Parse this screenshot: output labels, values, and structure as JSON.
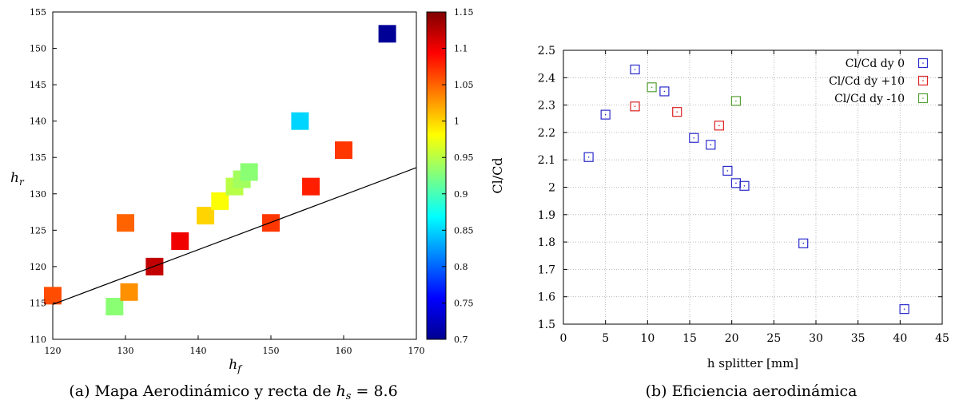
{
  "captions": {
    "left_prefix": "(a) Mapa Aerodinámico y recta de ",
    "left_math_var": "h",
    "left_math_sub": "s",
    "left_math_rest": " = 8.6",
    "right": "(b) Eficiencia aerodinámica"
  },
  "chart_data": [
    {
      "type": "heatmap",
      "title": "",
      "xlabel": "h",
      "xlabel_sub": "f",
      "ylabel": "h",
      "ylabel_sub": "r",
      "xlim": [
        120,
        170
      ],
      "ylim": [
        110,
        155
      ],
      "x_ticks": [
        120,
        130,
        140,
        150,
        160,
        170
      ],
      "y_ticks": [
        110,
        115,
        120,
        125,
        130,
        135,
        140,
        145,
        150,
        155
      ],
      "colorbar": {
        "label": "Cl/Cd",
        "range": [
          0.7,
          1.15
        ],
        "ticks": [
          "0.7",
          "0.75",
          "0.8",
          "0.85",
          "0.9",
          "0.95",
          "1",
          "1.05",
          "1.1",
          "1.15"
        ],
        "colormap": "jet"
      },
      "points": [
        {
          "x": 120,
          "y": 116,
          "value": 1.06
        },
        {
          "x": 128.5,
          "y": 114.5,
          "value": 0.93
        },
        {
          "x": 130,
          "y": 126,
          "value": 1.05
        },
        {
          "x": 130.5,
          "y": 116.5,
          "value": 1.03
        },
        {
          "x": 134,
          "y": 120,
          "value": 1.12
        },
        {
          "x": 137.5,
          "y": 123.5,
          "value": 1.1
        },
        {
          "x": 141,
          "y": 127,
          "value": 1.0
        },
        {
          "x": 143,
          "y": 129,
          "value": 0.98
        },
        {
          "x": 145,
          "y": 131,
          "value": 0.95
        },
        {
          "x": 146,
          "y": 132,
          "value": 0.94
        },
        {
          "x": 147,
          "y": 133,
          "value": 0.93
        },
        {
          "x": 150,
          "y": 126,
          "value": 1.07
        },
        {
          "x": 154,
          "y": 140,
          "value": 0.85
        },
        {
          "x": 155.5,
          "y": 131,
          "value": 1.08
        },
        {
          "x": 160,
          "y": 136,
          "value": 1.07
        },
        {
          "x": 166,
          "y": 152,
          "value": 0.71
        }
      ],
      "line": {
        "x": [
          120,
          170
        ],
        "y": [
          114.8,
          133.6
        ],
        "color": "#000000"
      }
    },
    {
      "type": "scatter",
      "title": "",
      "xlabel": "h splitter [mm]",
      "ylabel": "",
      "xlim": [
        0,
        45
      ],
      "ylim": [
        1.5,
        2.5
      ],
      "x_ticks": [
        "0",
        "5",
        "10",
        "15",
        "20",
        "25",
        "30",
        "35",
        "40",
        "45"
      ],
      "y_ticks": [
        "1.5",
        "1.6",
        "1.7",
        "1.8",
        "1.9",
        "2",
        "2.1",
        "2.2",
        "2.3",
        "2.4",
        "2.5"
      ],
      "grid": true,
      "legend_position": "top-right",
      "series": [
        {
          "name": "Cl/Cd dy 0",
          "color": "#2b2bcc",
          "x": [
            3,
            5,
            8.5,
            12,
            15.5,
            17.5,
            19.5,
            20.5,
            21.5,
            28.5,
            40.5
          ],
          "y": [
            2.11,
            2.265,
            2.43,
            2.35,
            2.18,
            2.155,
            2.06,
            2.015,
            2.005,
            1.795,
            1.555
          ]
        },
        {
          "name": "Cl/Cd dy +10",
          "color": "#dd2222",
          "x": [
            8.5,
            13.5,
            18.5
          ],
          "y": [
            2.295,
            2.275,
            2.225
          ]
        },
        {
          "name": "Cl/Cd dy -10",
          "color": "#55a033",
          "x": [
            10.5,
            20.5
          ],
          "y": [
            2.365,
            2.315
          ]
        }
      ]
    }
  ]
}
